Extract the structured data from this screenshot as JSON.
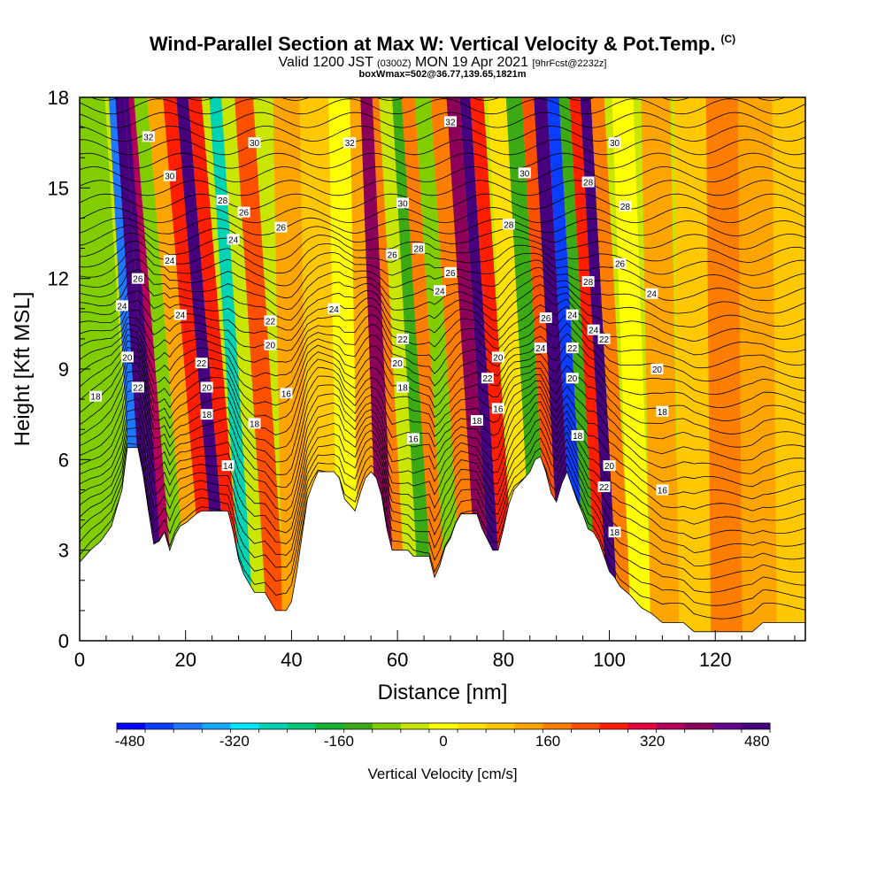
{
  "title": {
    "main": "Wind-Parallel Section at Max W: Vertical Velocity & Pot.Temp.",
    "mark": "(C)",
    "valid_prefix": "Valid 1200 JST",
    "valid_zulu": "(0300Z)",
    "valid_date": "MON 19 Apr 2021",
    "forecast": "[9hrFcst@2232z]",
    "box": "boxWmax=502@36.77,139.65,1821m"
  },
  "chart_data": {
    "type": "heatmap",
    "xlabel": "Distance [nm]",
    "ylabel": "Height [Kft MSL]",
    "xlim": [
      0,
      137
    ],
    "ylim": [
      0,
      18
    ],
    "x_ticks": [
      0,
      20,
      40,
      60,
      80,
      100,
      120
    ],
    "y_ticks": [
      0,
      3,
      6,
      9,
      12,
      15,
      18
    ],
    "colorbar": {
      "label": "Vertical Velocity [cm/s]",
      "min": -500,
      "max": 500,
      "step": 40,
      "tick_labels": [
        "-480",
        "-320",
        "-160",
        "0",
        "160",
        "320",
        "480"
      ],
      "tick_values": [
        -480,
        -320,
        -160,
        0,
        160,
        320,
        480
      ],
      "colors": [
        "#0000ff",
        "#0a3dff",
        "#1e78ff",
        "#14aaff",
        "#00e6ff",
        "#00d2b4",
        "#00c878",
        "#14b432",
        "#3caa14",
        "#82cd00",
        "#c8e600",
        "#ffff00",
        "#ffe100",
        "#ffc800",
        "#ffa500",
        "#ff7d00",
        "#ff5000",
        "#ff1e00",
        "#e6003c",
        "#b4005a",
        "#8c005a",
        "#64008c",
        "#46007d"
      ]
    },
    "terrain_height_kft": [
      [
        0,
        2.6
      ],
      [
        2,
        3.0
      ],
      [
        4,
        3.3
      ],
      [
        6,
        3.8
      ],
      [
        8,
        5.0
      ],
      [
        9,
        6.4
      ],
      [
        11,
        6.4
      ],
      [
        12,
        5.5
      ],
      [
        13,
        4.3
      ],
      [
        14,
        3.2
      ],
      [
        15,
        3.3
      ],
      [
        16,
        3.6
      ],
      [
        17,
        3.0
      ],
      [
        18,
        3.5
      ],
      [
        19,
        3.8
      ],
      [
        20,
        3.9
      ],
      [
        22,
        4.2
      ],
      [
        23,
        4.3
      ],
      [
        28,
        4.3
      ],
      [
        29,
        3.6
      ],
      [
        30,
        2.7
      ],
      [
        31,
        2.2
      ],
      [
        32,
        1.9
      ],
      [
        33,
        1.6
      ],
      [
        35,
        1.6
      ],
      [
        36,
        1.3
      ],
      [
        37,
        1.0
      ],
      [
        39,
        1.0
      ],
      [
        40,
        1.3
      ],
      [
        41,
        2.3
      ],
      [
        42,
        3.5
      ],
      [
        43,
        4.7
      ],
      [
        44,
        5.2
      ],
      [
        45,
        5.6
      ],
      [
        48,
        5.6
      ],
      [
        49,
        5.4
      ],
      [
        50,
        4.7
      ],
      [
        52,
        4.3
      ],
      [
        53,
        4.9
      ],
      [
        54,
        5.4
      ],
      [
        55,
        5.6
      ],
      [
        56,
        5.4
      ],
      [
        57,
        4.8
      ],
      [
        58,
        3.7
      ],
      [
        59,
        3.0
      ],
      [
        61,
        3.0
      ],
      [
        62,
        3.0
      ],
      [
        63,
        2.8
      ],
      [
        66,
        2.8
      ],
      [
        67,
        2.1
      ],
      [
        68,
        2.5
      ],
      [
        69,
        3.1
      ],
      [
        70,
        3.4
      ],
      [
        71,
        3.9
      ],
      [
        72,
        4.2
      ],
      [
        75,
        4.2
      ],
      [
        76,
        3.7
      ],
      [
        78,
        3.0
      ],
      [
        79,
        3.0
      ],
      [
        80,
        3.7
      ],
      [
        81,
        4.5
      ],
      [
        82,
        5.0
      ],
      [
        84,
        5.4
      ],
      [
        85,
        5.6
      ],
      [
        86,
        6.0
      ],
      [
        87,
        6.1
      ],
      [
        88,
        5.6
      ],
      [
        89,
        4.9
      ],
      [
        90,
        4.6
      ],
      [
        91,
        5.2
      ],
      [
        92,
        5.6
      ],
      [
        93,
        5.1
      ],
      [
        94,
        4.6
      ],
      [
        95,
        4.2
      ],
      [
        96,
        3.7
      ],
      [
        97,
        3.6
      ],
      [
        98,
        3.3
      ],
      [
        99,
        2.8
      ],
      [
        100,
        2.3
      ],
      [
        101,
        2.1
      ],
      [
        102,
        1.8
      ],
      [
        104,
        1.5
      ],
      [
        106,
        1.1
      ],
      [
        108,
        0.9
      ],
      [
        110,
        0.6
      ],
      [
        112,
        0.6
      ],
      [
        114,
        0.6
      ],
      [
        116,
        0.3
      ],
      [
        120,
        0.3
      ],
      [
        124,
        0.3
      ],
      [
        127,
        0.3
      ],
      [
        129,
        0.6
      ],
      [
        131,
        0.6
      ],
      [
        133,
        0.6
      ],
      [
        137,
        0.6
      ]
    ],
    "velocity_bands": [
      {
        "x": 9,
        "slope": 0.35,
        "value": -160
      },
      {
        "x": 11,
        "slope": 0.3,
        "value": -440
      },
      {
        "x": 13,
        "slope": 0.35,
        "value": 360
      },
      {
        "x": 14.5,
        "slope": 0.35,
        "value": 440
      },
      {
        "x": 16,
        "slope": 0.4,
        "value": 240
      },
      {
        "x": 18,
        "slope": 0.45,
        "value": -160
      },
      {
        "x": 21,
        "slope": 0.45,
        "value": 40
      },
      {
        "x": 24,
        "slope": 0.45,
        "value": 160
      },
      {
        "x": 26,
        "slope": 0.45,
        "value": 360
      },
      {
        "x": 28.5,
        "slope": 0.45,
        "value": 160
      },
      {
        "x": 31,
        "slope": 0.35,
        "value": -320
      },
      {
        "x": 33,
        "slope": 0.35,
        "value": -120
      },
      {
        "x": 36,
        "slope": 0.35,
        "value": 120
      },
      {
        "x": 40,
        "slope": 0.1,
        "value": 40
      },
      {
        "x": 46,
        "slope": 0.1,
        "value": 0
      },
      {
        "x": 51,
        "slope": 0.1,
        "value": -80
      },
      {
        "x": 54,
        "slope": 0.1,
        "value": 40
      },
      {
        "x": 58,
        "slope": 0.2,
        "value": 280
      },
      {
        "x": 60,
        "slope": 0.25,
        "value": 80
      },
      {
        "x": 62,
        "slope": 0.3,
        "value": -120
      },
      {
        "x": 65,
        "slope": 0.3,
        "value": -200
      },
      {
        "x": 67,
        "slope": 0.35,
        "value": 80
      },
      {
        "x": 70,
        "slope": 0.35,
        "value": -160
      },
      {
        "x": 73,
        "slope": 0.35,
        "value": 80
      },
      {
        "x": 76,
        "slope": 0.35,
        "value": 280
      },
      {
        "x": 78,
        "slope": 0.35,
        "value": 400
      },
      {
        "x": 80,
        "slope": 0.35,
        "value": 160
      },
      {
        "x": 83,
        "slope": 0.3,
        "value": -40
      },
      {
        "x": 87,
        "slope": 0.3,
        "value": -200
      },
      {
        "x": 89,
        "slope": 0.3,
        "value": 120
      },
      {
        "x": 91.5,
        "slope": 0.3,
        "value": 480
      },
      {
        "x": 94,
        "slope": 0.3,
        "value": -480
      },
      {
        "x": 96,
        "slope": 0.3,
        "value": -200
      },
      {
        "x": 98,
        "slope": 0.3,
        "value": 160
      },
      {
        "x": 100,
        "slope": 0.3,
        "value": 360
      },
      {
        "x": 102,
        "slope": 0.3,
        "value": 80
      },
      {
        "x": 105,
        "slope": 0.2,
        "value": -80
      },
      {
        "x": 110,
        "slope": 0.1,
        "value": 40
      },
      {
        "x": 116,
        "slope": 0.05,
        "value": 0
      },
      {
        "x": 122,
        "slope": 0.05,
        "value": 80
      },
      {
        "x": 128,
        "slope": 0.05,
        "value": 40
      },
      {
        "x": 135,
        "slope": 0.05,
        "value": 0
      }
    ],
    "contour_labels": [
      {
        "text": "32",
        "x": 13,
        "y": 16.7
      },
      {
        "text": "30",
        "x": 17,
        "y": 15.4
      },
      {
        "text": "28",
        "x": 27,
        "y": 14.6
      },
      {
        "text": "26",
        "x": 31,
        "y": 14.2
      },
      {
        "text": "24",
        "x": 29,
        "y": 13.3
      },
      {
        "text": "26",
        "x": 38,
        "y": 13.7
      },
      {
        "text": "30",
        "x": 33,
        "y": 16.5
      },
      {
        "text": "32",
        "x": 51,
        "y": 16.5
      },
      {
        "text": "32",
        "x": 70,
        "y": 17.2
      },
      {
        "text": "30",
        "x": 84,
        "y": 15.5
      },
      {
        "text": "28",
        "x": 81,
        "y": 13.8
      },
      {
        "text": "30",
        "x": 61,
        "y": 14.5
      },
      {
        "text": "28",
        "x": 64,
        "y": 13.0
      },
      {
        "text": "26",
        "x": 59,
        "y": 12.8
      },
      {
        "text": "26",
        "x": 70,
        "y": 12.2
      },
      {
        "text": "24",
        "x": 68,
        "y": 11.6
      },
      {
        "text": "24",
        "x": 17,
        "y": 12.6
      },
      {
        "text": "26",
        "x": 11,
        "y": 12.0
      },
      {
        "text": "24",
        "x": 8,
        "y": 11.1
      },
      {
        "text": "24",
        "x": 19,
        "y": 10.8
      },
      {
        "text": "24",
        "x": 48,
        "y": 11.0
      },
      {
        "text": "22",
        "x": 36,
        "y": 10.6
      },
      {
        "text": "20",
        "x": 36,
        "y": 9.8
      },
      {
        "text": "22",
        "x": 23,
        "y": 9.2
      },
      {
        "text": "20",
        "x": 9,
        "y": 9.4
      },
      {
        "text": "22",
        "x": 11,
        "y": 8.4
      },
      {
        "text": "20",
        "x": 24,
        "y": 8.4
      },
      {
        "text": "18",
        "x": 24,
        "y": 7.5
      },
      {
        "text": "18",
        "x": 3,
        "y": 8.1
      },
      {
        "text": "16",
        "x": 39,
        "y": 8.2
      },
      {
        "text": "22",
        "x": 61,
        "y": 10.0
      },
      {
        "text": "20",
        "x": 60,
        "y": 9.2
      },
      {
        "text": "18",
        "x": 61,
        "y": 8.4
      },
      {
        "text": "18",
        "x": 33,
        "y": 7.2
      },
      {
        "text": "16",
        "x": 63,
        "y": 6.7
      },
      {
        "text": "14",
        "x": 28,
        "y": 5.8
      },
      {
        "text": "20",
        "x": 79,
        "y": 9.4
      },
      {
        "text": "22",
        "x": 77,
        "y": 8.7
      },
      {
        "text": "16",
        "x": 79,
        "y": 7.7
      },
      {
        "text": "18",
        "x": 75,
        "y": 7.3
      },
      {
        "text": "26",
        "x": 88,
        "y": 10.7
      },
      {
        "text": "24",
        "x": 93,
        "y": 10.8
      },
      {
        "text": "24",
        "x": 97,
        "y": 10.3
      },
      {
        "text": "22",
        "x": 99,
        "y": 10.0
      },
      {
        "text": "24",
        "x": 87,
        "y": 9.7
      },
      {
        "text": "22",
        "x": 93,
        "y": 9.7
      },
      {
        "text": "20",
        "x": 93,
        "y": 8.7
      },
      {
        "text": "18",
        "x": 94,
        "y": 6.8
      },
      {
        "text": "20",
        "x": 100,
        "y": 5.8
      },
      {
        "text": "22",
        "x": 99,
        "y": 5.1
      },
      {
        "text": "18",
        "x": 101,
        "y": 3.6
      },
      {
        "text": "28",
        "x": 96,
        "y": 15.2
      },
      {
        "text": "30",
        "x": 101,
        "y": 16.5
      },
      {
        "text": "28",
        "x": 103,
        "y": 14.4
      },
      {
        "text": "26",
        "x": 102,
        "y": 12.5
      },
      {
        "text": "28",
        "x": 96,
        "y": 11.9
      },
      {
        "text": "24",
        "x": 108,
        "y": 11.5
      },
      {
        "text": "20",
        "x": 109,
        "y": 9.0
      },
      {
        "text": "18",
        "x": 110,
        "y": 7.6
      },
      {
        "text": "16",
        "x": 110,
        "y": 5.0
      }
    ]
  }
}
